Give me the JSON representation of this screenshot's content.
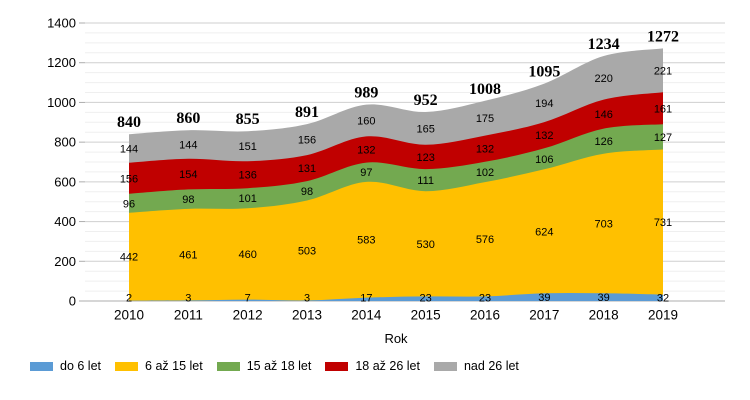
{
  "chart_data": {
    "type": "area",
    "stacked": true,
    "title": "",
    "xlabel": "Rok",
    "ylabel": "",
    "ylim": [
      0,
      1400
    ],
    "y_major_step": 200,
    "y_minor_step": 50,
    "grid": true,
    "legend_position": "bottom",
    "categories": [
      "2010",
      "2011",
      "2012",
      "2013",
      "2014",
      "2015",
      "2016",
      "2017",
      "2018",
      "2019"
    ],
    "series": [
      {
        "name": "do 6 let",
        "color": "#5B9BD5",
        "values": [
          2,
          3,
          7,
          3,
          17,
          23,
          23,
          39,
          39,
          32
        ]
      },
      {
        "name": "6 až 15 let",
        "color": "#FFC000",
        "values": [
          442,
          461,
          460,
          503,
          583,
          530,
          576,
          624,
          703,
          731
        ]
      },
      {
        "name": "15 až 18 let",
        "color": "#73A950",
        "values": [
          96,
          98,
          101,
          98,
          97,
          111,
          102,
          106,
          126,
          127
        ]
      },
      {
        "name": "18 až 26 let",
        "color": "#C00000",
        "values": [
          156,
          154,
          136,
          131,
          132,
          123,
          132,
          132,
          146,
          161
        ]
      },
      {
        "name": "nad 26 let",
        "color": "#A9A9A9",
        "values": [
          144,
          144,
          151,
          156,
          160,
          165,
          175,
          194,
          220,
          221
        ]
      }
    ],
    "totals": [
      840,
      860,
      855,
      891,
      989,
      952,
      1008,
      1095,
      1234,
      1272
    ]
  },
  "colors": {
    "grid_major": "#CFCFCF",
    "grid_minor": "#EFEFEF",
    "axis": "#ADADAD",
    "text": "#000000"
  }
}
